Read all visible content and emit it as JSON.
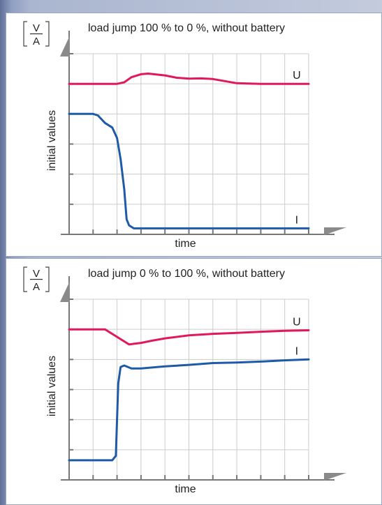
{
  "colors": {
    "voltage": "#e0195a",
    "current": "#1e5aa8",
    "grid": "#cccccc",
    "axis": "#777777",
    "panel_border": "#9aa6c8"
  },
  "unit_label": {
    "numerator": "V",
    "denominator": "A"
  },
  "chart_data": [
    {
      "type": "line",
      "title": "load jump 100 % to 0 %, without battery",
      "xlabel": "time",
      "ylabel": "initial values",
      "grid": true,
      "xlim": [
        0,
        10
      ],
      "ylim": [
        0,
        6
      ],
      "series": [
        {
          "name": "U",
          "color": "#e0195a",
          "x": [
            0,
            1,
            2,
            2.3,
            2.6,
            3,
            3.3,
            4,
            4.5,
            5,
            5.5,
            6,
            7,
            8,
            9,
            10
          ],
          "y": [
            5.0,
            5.0,
            5.0,
            5.05,
            5.22,
            5.32,
            5.34,
            5.28,
            5.2,
            5.17,
            5.18,
            5.16,
            5.02,
            5.0,
            5.0,
            5.0
          ]
        },
        {
          "name": "I",
          "color": "#1e5aa8",
          "x": [
            0,
            1,
            1.2,
            1.5,
            1.8,
            2.0,
            2.15,
            2.3,
            2.4,
            2.5,
            2.7,
            3,
            4,
            10
          ],
          "y": [
            4.0,
            4.0,
            3.95,
            3.7,
            3.55,
            3.2,
            2.5,
            1.5,
            0.5,
            0.3,
            0.2,
            0.2,
            0.2,
            0.2
          ]
        }
      ]
    },
    {
      "type": "line",
      "title": "load jump 0 % to 100 %, without battery",
      "xlabel": "time",
      "ylabel": "initial values",
      "grid": true,
      "xlim": [
        0,
        10
      ],
      "ylim": [
        0,
        6
      ],
      "series": [
        {
          "name": "U",
          "color": "#e0195a",
          "x": [
            0,
            1,
            1.5,
            2,
            2.5,
            3,
            3.5,
            4,
            5,
            6,
            7,
            8,
            9,
            10
          ],
          "y": [
            5.0,
            5.0,
            5.0,
            4.75,
            4.5,
            4.55,
            4.63,
            4.7,
            4.8,
            4.85,
            4.88,
            4.92,
            4.95,
            4.97
          ]
        },
        {
          "name": "I",
          "color": "#1e5aa8",
          "x": [
            0,
            1,
            1.8,
            1.95,
            2.0,
            2.05,
            2.15,
            2.3,
            2.6,
            3,
            4,
            5,
            6,
            7,
            8,
            9,
            10
          ],
          "y": [
            0.65,
            0.65,
            0.65,
            0.8,
            2.0,
            3.2,
            3.75,
            3.8,
            3.7,
            3.7,
            3.77,
            3.82,
            3.88,
            3.9,
            3.93,
            3.97,
            4.0
          ]
        }
      ]
    }
  ]
}
